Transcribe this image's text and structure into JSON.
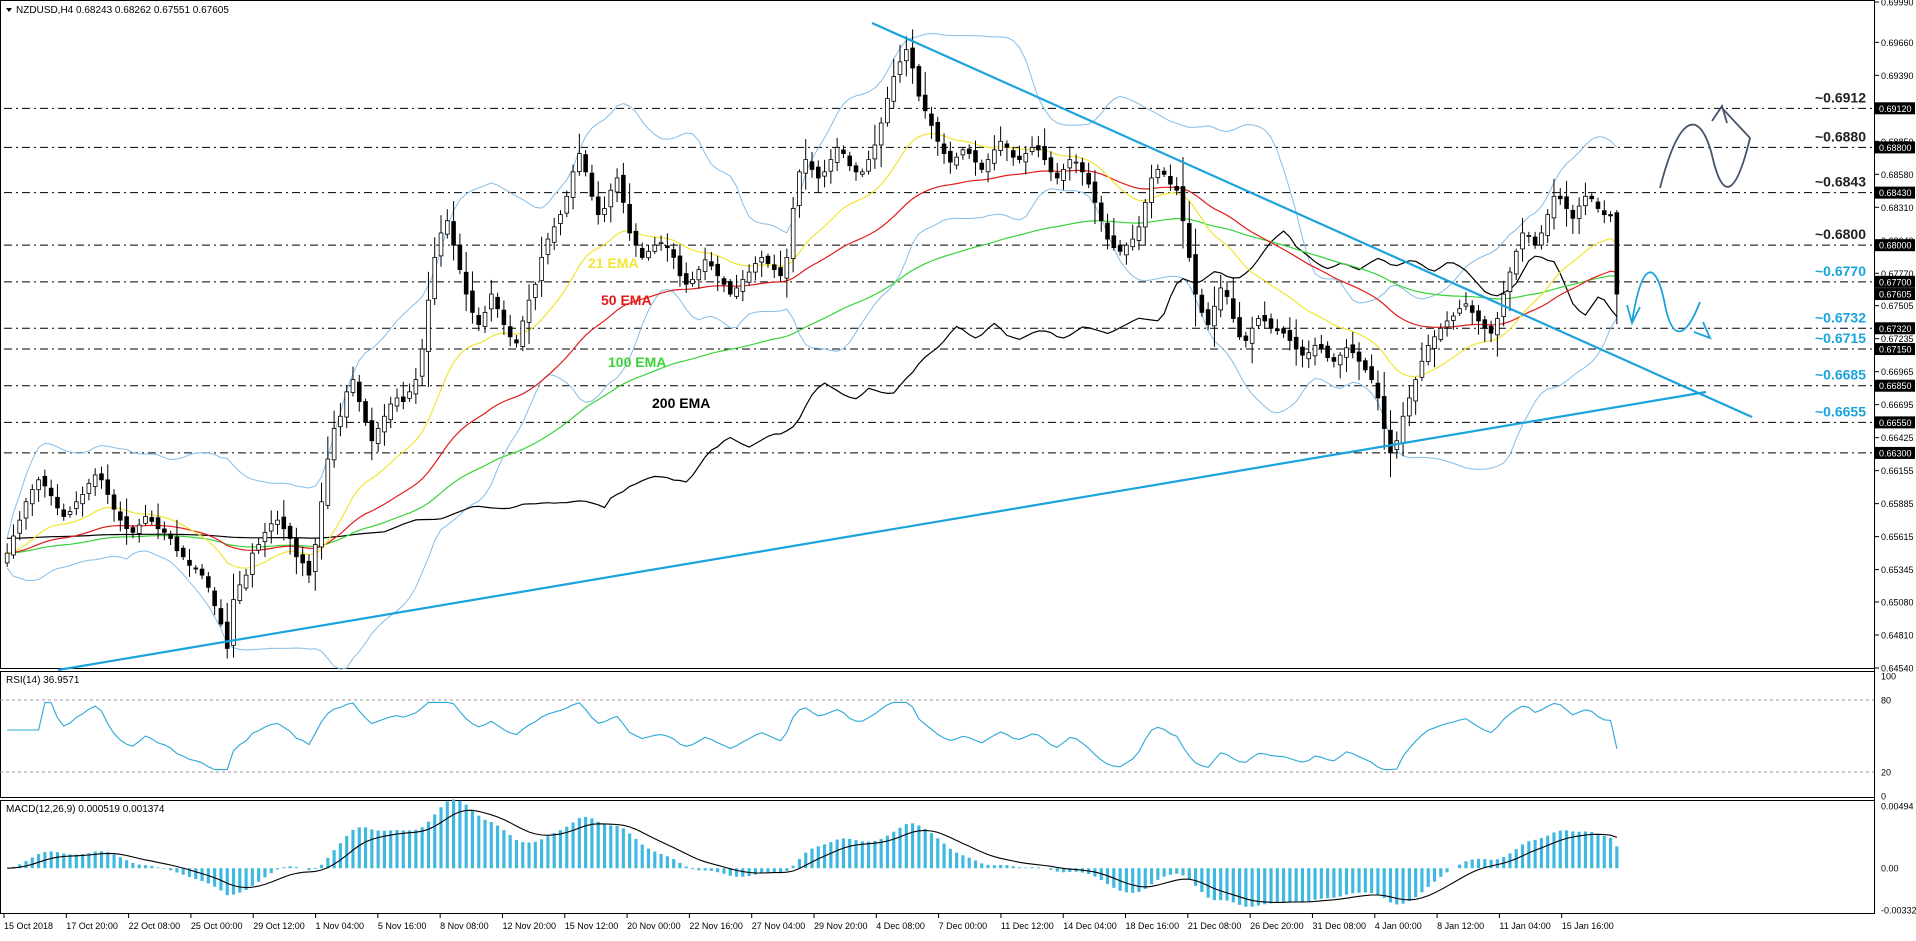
{
  "window": {
    "title": "NZDUSD,H4 0.68243 0.68262 0.67551 0.67605"
  },
  "colors": {
    "background": "#ffffff",
    "grid": "#000000",
    "candle_bull": "#ffffff",
    "candle_bear": "#000000",
    "ema21": "#f2e533",
    "ema50": "#e21b1b",
    "ema100": "#39d339",
    "ema200": "#000000",
    "bollinger": "#87bde6",
    "trendline": "#1aa3dd",
    "level_label_dark": "#222222",
    "level_label_blue": "#1aa3dd",
    "rsi_line": "#2aa7d8",
    "macd_hist": "#3fb8e0",
    "macd_signal": "#000000",
    "scenario_up": "#44556a",
    "scenario_down": "#1aa3dd"
  },
  "ema_labels": {
    "ema21": "21 EMA",
    "ema50": "50 EMA",
    "ema100": "100 EMA",
    "ema200": "200 EMA"
  },
  "rsi": {
    "title": "RSI(14) 36.9571",
    "scale": [
      "100",
      "80",
      "20",
      "0"
    ],
    "levels": [
      80,
      20
    ]
  },
  "macd": {
    "title": "MACD(12,26,9) 0.000519 0.001374",
    "scale": [
      "0.00494",
      "0.00",
      "-0.00332"
    ]
  },
  "price_scale": [
    "0.69990",
    "0.69660",
    "0.69390",
    "0.69120",
    "0.68850",
    "0.68580",
    "0.68310",
    "0.68040",
    "0.67770",
    "0.67505",
    "0.67235",
    "0.66965",
    "0.66695",
    "0.66425",
    "0.66155",
    "0.65885",
    "0.65615",
    "0.65345",
    "0.65080",
    "0.64810",
    "0.64540"
  ],
  "time_axis": [
    "15 Oct 2018",
    "17 Oct 20:00",
    "22 Oct 08:00",
    "25 Oct 00:00",
    "29 Oct 12:00",
    "1 Nov 04:00",
    "5 Nov 16:00",
    "8 Nov 08:00",
    "12 Nov 20:00",
    "15 Nov 12:00",
    "20 Nov 00:00",
    "22 Nov 16:00",
    "27 Nov 04:00",
    "29 Nov 20:00",
    "4 Dec 08:00",
    "7 Dec 00:00",
    "11 Dec 12:00",
    "14 Dec 04:00",
    "18 Dec 16:00",
    "21 Dec 08:00",
    "26 Dec 20:00",
    "31 Dec 08:00",
    "4 Jan 00:00",
    "8 Jan 12:00",
    "11 Jan 04:00",
    "15 Jan 16:00"
  ],
  "levels": [
    {
      "label": "~0.6912",
      "tag": "0.69120",
      "price": 0.6912,
      "style": "dark"
    },
    {
      "label": "~0.6880",
      "tag": "0.68800",
      "price": 0.688,
      "style": "dark"
    },
    {
      "label": "~0.6843",
      "tag": "0.68430",
      "price": 0.6843,
      "style": "dark"
    },
    {
      "label": "~0.6800",
      "tag": "0.68000",
      "price": 0.68,
      "style": "dark"
    },
    {
      "label": "~0.6770",
      "tag": "0.67700",
      "price": 0.677,
      "style": "blue"
    },
    {
      "label": "~0.6732",
      "tag": "0.67320",
      "price": 0.6732,
      "style": "blue"
    },
    {
      "label": "~0.6715",
      "tag": "0.67150",
      "price": 0.6715,
      "style": "blue"
    },
    {
      "label": "~0.6685",
      "tag": "0.66850",
      "price": 0.6685,
      "style": "blue"
    },
    {
      "label": "~0.6655",
      "tag": "0.66550",
      "price": 0.6655,
      "style": "blue"
    },
    {
      "label": "",
      "tag": "0.66300",
      "price": 0.663,
      "style": "blue"
    }
  ],
  "current_price_tag": "0.67605",
  "chart_data": {
    "type": "candlestick",
    "symbol": "NZDUSD",
    "timeframe": "H4",
    "title": "NZDUSD,H4 0.68243 0.68262 0.67551 0.67605",
    "ylim": [
      0.6454,
      0.6999
    ],
    "close": [
      0.6548,
      0.6562,
      0.6575,
      0.659,
      0.66,
      0.6608,
      0.6603,
      0.6595,
      0.6585,
      0.6578,
      0.6582,
      0.659,
      0.6596,
      0.6605,
      0.6612,
      0.6608,
      0.6596,
      0.6584,
      0.6575,
      0.6568,
      0.6565,
      0.6571,
      0.6578,
      0.6574,
      0.6568,
      0.6565,
      0.656,
      0.655,
      0.6545,
      0.6538,
      0.6535,
      0.653,
      0.652,
      0.6505,
      0.649,
      0.647,
      0.651,
      0.6522,
      0.653,
      0.6548,
      0.6555,
      0.6565,
      0.6572,
      0.6575,
      0.6568,
      0.656,
      0.6545,
      0.654,
      0.653,
      0.6555,
      0.659,
      0.6625,
      0.665,
      0.666,
      0.668,
      0.669,
      0.6672,
      0.6655,
      0.664,
      0.665,
      0.666,
      0.667,
      0.6675,
      0.6672,
      0.668,
      0.669,
      0.6715,
      0.6755,
      0.679,
      0.681,
      0.682,
      0.68,
      0.678,
      0.676,
      0.6745,
      0.6735,
      0.6745,
      0.676,
      0.6748,
      0.6735,
      0.6725,
      0.672,
      0.6738,
      0.6755,
      0.6768,
      0.679,
      0.6805,
      0.6815,
      0.6825,
      0.684,
      0.686,
      0.6875,
      0.686,
      0.684,
      0.6825,
      0.683,
      0.6845,
      0.6855,
      0.6835,
      0.681,
      0.68,
      0.679,
      0.6795,
      0.68,
      0.6802,
      0.6798,
      0.679,
      0.6775,
      0.6768,
      0.6772,
      0.678,
      0.6788,
      0.6783,
      0.6775,
      0.6768,
      0.676,
      0.6765,
      0.6772,
      0.6778,
      0.6785,
      0.679,
      0.6785,
      0.678,
      0.6775,
      0.679,
      0.683,
      0.686,
      0.687,
      0.6862,
      0.6855,
      0.686,
      0.687,
      0.688,
      0.6875,
      0.6865,
      0.686,
      0.686,
      0.687,
      0.6882,
      0.69,
      0.692,
      0.6938,
      0.695,
      0.696,
      0.6945,
      0.6922,
      0.691,
      0.6898,
      0.6885,
      0.6875,
      0.6868,
      0.6872,
      0.6878,
      0.6875,
      0.6868,
      0.6862,
      0.687,
      0.6878,
      0.6885,
      0.688,
      0.6872,
      0.687,
      0.6875,
      0.688,
      0.6878,
      0.687,
      0.686,
      0.6855,
      0.6862,
      0.687,
      0.6868,
      0.686,
      0.685,
      0.6835,
      0.682,
      0.6805,
      0.6798,
      0.6795,
      0.68,
      0.6805,
      0.6815,
      0.6835,
      0.6855,
      0.6862,
      0.6858,
      0.685,
      0.6845,
      0.682,
      0.679,
      0.676,
      0.6745,
      0.6735,
      0.675,
      0.6765,
      0.6758,
      0.674,
      0.6725,
      0.6722,
      0.6732,
      0.674,
      0.6738,
      0.6732,
      0.673,
      0.6728,
      0.6722,
      0.6715,
      0.671,
      0.6712,
      0.6718,
      0.6715,
      0.6708,
      0.6705,
      0.671,
      0.6716,
      0.6712,
      0.6705,
      0.6698,
      0.669,
      0.6675,
      0.665,
      0.663,
      0.664,
      0.666,
      0.6675,
      0.669,
      0.6705,
      0.6718,
      0.6725,
      0.6732,
      0.6738,
      0.6742,
      0.6748,
      0.6752,
      0.6745,
      0.6738,
      0.6732,
      0.6728,
      0.674,
      0.676,
      0.6778,
      0.6795,
      0.681,
      0.6808,
      0.68,
      0.681,
      0.6825,
      0.684,
      0.6838,
      0.683,
      0.6822,
      0.6832,
      0.684,
      0.6838,
      0.683,
      0.6825,
      0.6824,
      0.676
    ]
  }
}
